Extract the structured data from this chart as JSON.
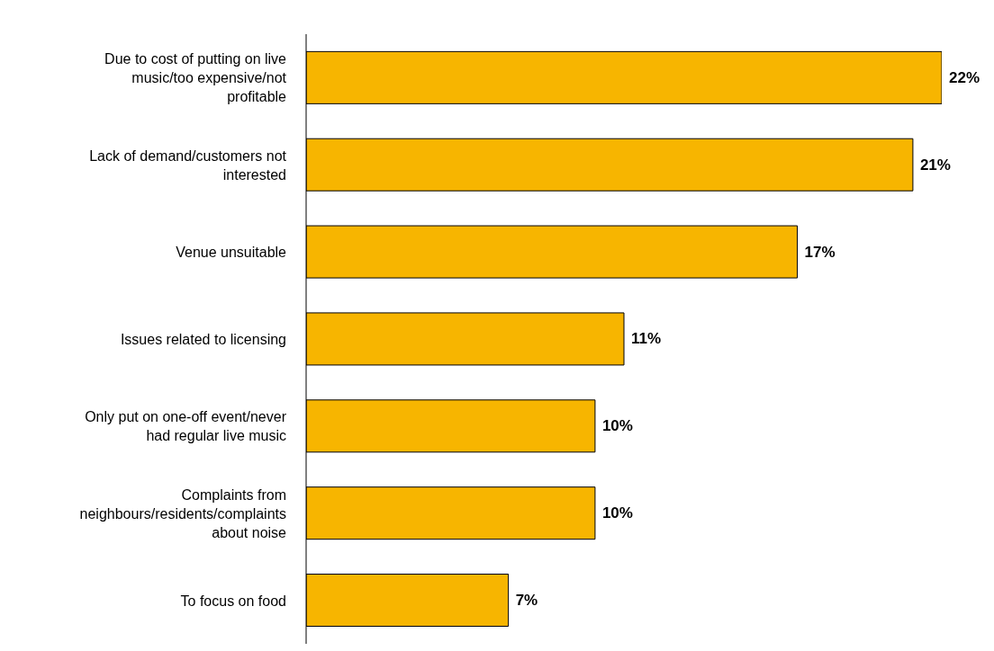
{
  "chart_data": {
    "type": "bar",
    "orientation": "horizontal",
    "categories": [
      "Due to cost of putting on live music/too expensive/not profitable",
      "Lack of demand/customers not interested",
      "Venue unsuitable",
      "Issues related to licensing",
      "Only put on one-off event/never had regular live music",
      "Complaints from neighbours/residents/complaints about noise",
      "To focus on food"
    ],
    "values": [
      22,
      21,
      17,
      11,
      10,
      10,
      7
    ],
    "value_labels": [
      "22%",
      "21%",
      "17%",
      "11%",
      "10%",
      "10%",
      "7%"
    ],
    "color": "#f7b500"
  }
}
